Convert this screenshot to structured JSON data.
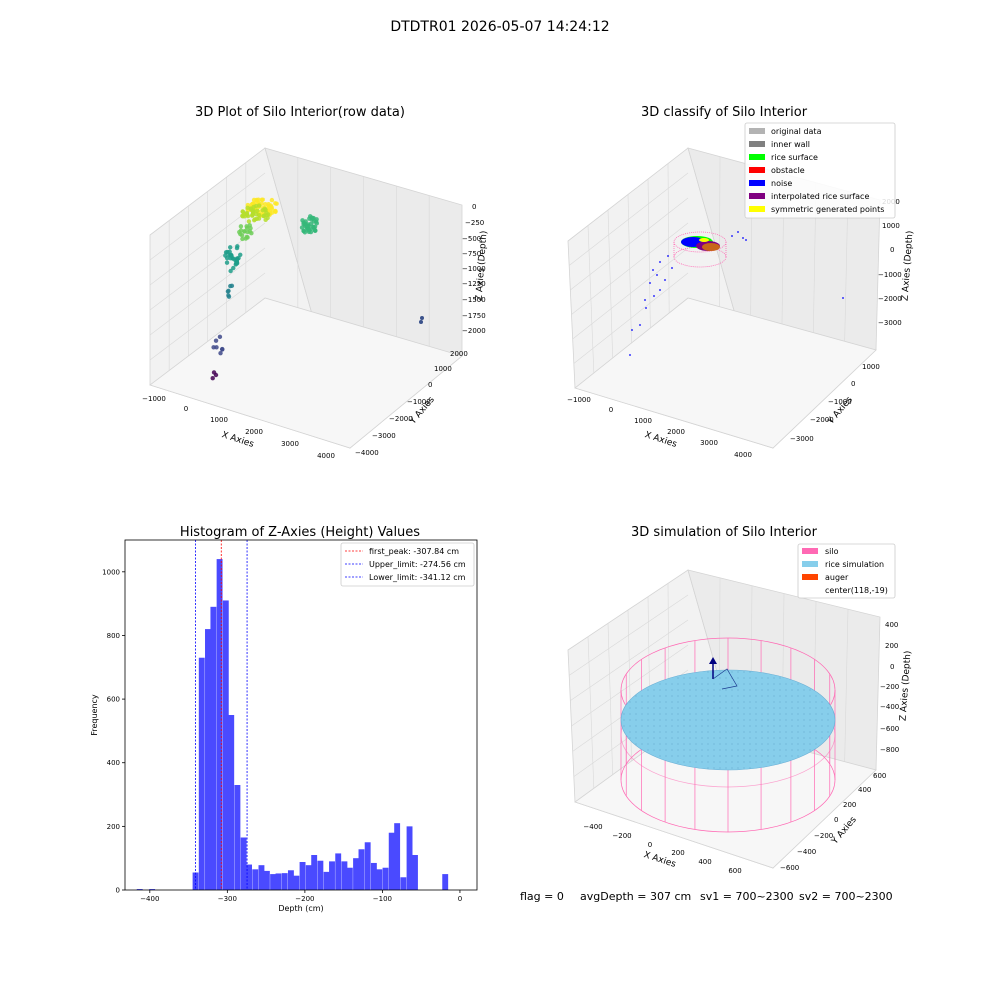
{
  "figure": {
    "suptitle": "DTDTR01 2026-05-07 14:24:12",
    "footer": {
      "flag": "flag = 0",
      "avg": "avgDepth = 307 cm",
      "sv1": "sv1 = 700~2300",
      "sv2": "sv2 = 700~2300"
    }
  },
  "colors": {
    "histogram_bar": "#4a4aff",
    "first_peak_line": "#ff0000",
    "limit_lines": "#0000ff",
    "original_data": "#b3b3b3",
    "inner_wall": "#808080",
    "rice_surface": "#00ff00",
    "obstacle": "#ff0000",
    "noise": "#0000ff",
    "interpolated_rice_surface": "#800080",
    "symmetric_generated_points": "#ffff00",
    "silo": "#ff69b4",
    "rice_simulation": "#87ceeb",
    "auger": "#ff4500"
  },
  "chart_data": [
    {
      "type": "scatter",
      "title": "3D Plot of Silo Interior(row data)",
      "xlabel": "X Axies",
      "ylabel": "Y Axies",
      "zlabel": "Z Axies (Depth)",
      "xticks": [
        "−1000",
        "0",
        "1000",
        "2000",
        "3000",
        "4000"
      ],
      "yticks": [
        "−4000",
        "−3000",
        "−2000",
        "−1000",
        "0",
        "1000",
        "2000"
      ],
      "zticks": [
        "−2000",
        "−1750",
        "−1500",
        "−1250",
        "−1000",
        "−750",
        "−500",
        "−250",
        "0"
      ],
      "xlim": [
        -1000,
        4000
      ],
      "ylim": [
        -4000,
        2000
      ],
      "zlim": [
        -2000,
        0
      ],
      "colormap": "viridis (by depth)",
      "grid": true
    },
    {
      "type": "scatter",
      "title": "3D classify of Silo Interior",
      "xlabel": "X Axies",
      "ylabel": "Y Axies",
      "zlabel": "Z Axies (Depth)",
      "xticks": [
        "−1000",
        "0",
        "1000",
        "2000",
        "3000",
        "4000"
      ],
      "yticks": [
        "−3000",
        "−2000",
        "−1000",
        "0",
        "1000"
      ],
      "zticks": [
        "−3000",
        "−2000",
        "−1000",
        "0",
        "1000",
        "2000"
      ],
      "xlim": [
        -1000,
        4000
      ],
      "ylim": [
        -3000,
        1000
      ],
      "zlim": [
        -3000,
        2000
      ],
      "legend": [
        "original data",
        "inner wall",
        "rice surface",
        "obstacle",
        "noise",
        "interpolated rice surface",
        "symmetric generated points"
      ],
      "legend_position": "top-right",
      "grid": true
    },
    {
      "type": "bar",
      "title": "Histogram of Z-Axies (Height) Values",
      "xlabel": "Depth (cm)",
      "ylabel": "Frequency",
      "xlim": [
        -432,
        22
      ],
      "ylim": [
        0,
        1100
      ],
      "xticks": [
        -400,
        -300,
        -200,
        -100,
        0
      ],
      "yticks": [
        0,
        200,
        400,
        600,
        800,
        1000
      ],
      "bin_width": 7.6,
      "bins": [
        {
          "x": -413,
          "y": 3
        },
        {
          "x": -397,
          "y": 3
        },
        {
          "x": -341,
          "y": 55
        },
        {
          "x": -333,
          "y": 730
        },
        {
          "x": -325,
          "y": 820
        },
        {
          "x": -318,
          "y": 890
        },
        {
          "x": -310,
          "y": 1040
        },
        {
          "x": -302,
          "y": 910
        },
        {
          "x": -295,
          "y": 550
        },
        {
          "x": -287,
          "y": 330
        },
        {
          "x": -279,
          "y": 165
        },
        {
          "x": -272,
          "y": 80
        },
        {
          "x": -264,
          "y": 65
        },
        {
          "x": -256,
          "y": 78
        },
        {
          "x": -249,
          "y": 60
        },
        {
          "x": -241,
          "y": 50
        },
        {
          "x": -234,
          "y": 52
        },
        {
          "x": -226,
          "y": 53
        },
        {
          "x": -218,
          "y": 62
        },
        {
          "x": -211,
          "y": 45
        },
        {
          "x": -203,
          "y": 88
        },
        {
          "x": -195,
          "y": 78
        },
        {
          "x": -188,
          "y": 110
        },
        {
          "x": -180,
          "y": 92
        },
        {
          "x": -172,
          "y": 57
        },
        {
          "x": -165,
          "y": 90
        },
        {
          "x": -157,
          "y": 115
        },
        {
          "x": -149,
          "y": 90
        },
        {
          "x": -142,
          "y": 70
        },
        {
          "x": -134,
          "y": 100
        },
        {
          "x": -127,
          "y": 128
        },
        {
          "x": -119,
          "y": 150
        },
        {
          "x": -111,
          "y": 85
        },
        {
          "x": -104,
          "y": 65
        },
        {
          "x": -96,
          "y": 70
        },
        {
          "x": -88,
          "y": 180
        },
        {
          "x": -81,
          "y": 210
        },
        {
          "x": -73,
          "y": 40
        },
        {
          "x": -65,
          "y": 200
        },
        {
          "x": -58,
          "y": 110
        },
        {
          "x": -19,
          "y": 50
        }
      ],
      "lines": [
        {
          "value": -307.84,
          "label": "first_peak: -307.84 cm",
          "style": "red-dashed"
        },
        {
          "value": -274.56,
          "label": "Upper_limit: -274.56 cm",
          "style": "blue-dashed"
        },
        {
          "value": -341.12,
          "label": "Lower_limit: -341.12 cm",
          "style": "blue-dashed"
        }
      ],
      "legend_position": "top-right",
      "grid": false
    },
    {
      "type": "scatter",
      "title": "3D simulation of Silo Interior",
      "xlabel": "X Axies",
      "ylabel": "Y Axies",
      "zlabel": "Z Axies (Depth)",
      "xticks": [
        "−400",
        "−200",
        "0",
        "200",
        "400",
        "600"
      ],
      "yticks": [
        "−600",
        "−400",
        "−200",
        "0",
        "200",
        "400",
        "600"
      ],
      "zticks": [
        "−800",
        "−600",
        "−400",
        "−200",
        "0",
        "200",
        "400"
      ],
      "xlim": [
        -500,
        700
      ],
      "ylim": [
        -700,
        700
      ],
      "zlim": [
        -900,
        500
      ],
      "legend": [
        "silo",
        "rice simulation",
        "auger",
        "center(118,-19)"
      ],
      "legend_position": "top-right",
      "grid": true
    }
  ]
}
